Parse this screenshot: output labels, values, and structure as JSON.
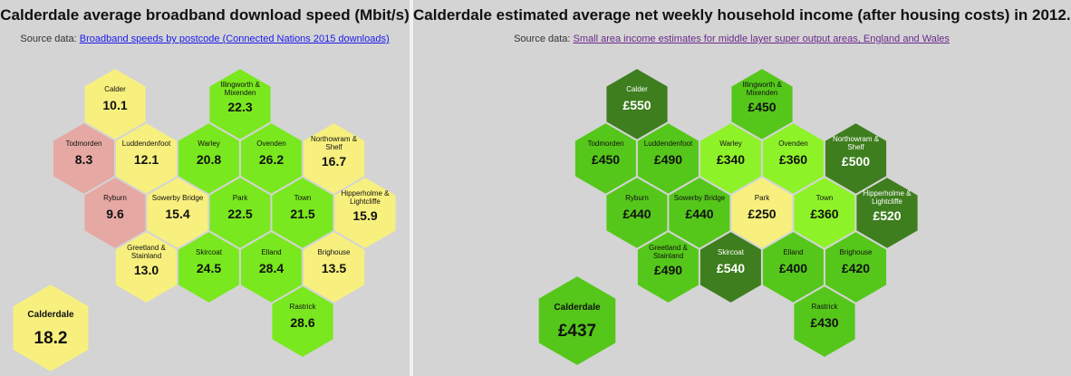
{
  "left": {
    "title": "Calderdale average broadband download speed (Mbit/s)",
    "source_prefix": "Source data:",
    "source_link": "Broadband speeds by postcode (Connected Nations 2015 downloads)",
    "summary": {
      "name": "Calderdale",
      "value": "18.2",
      "color": "#f8f07e"
    },
    "hexes": [
      {
        "name": [
          "Calder"
        ],
        "value": "10.1",
        "color": "#f8f07e"
      },
      {
        "name": [
          "Illingworth &",
          "Mixenden"
        ],
        "value": "22.3",
        "color": "#7ae81e"
      },
      {
        "name": [
          "Todmorden"
        ],
        "value": "8.3",
        "color": "#e6a8a2"
      },
      {
        "name": [
          "Luddendenfoot"
        ],
        "value": "12.1",
        "color": "#f8f07e"
      },
      {
        "name": [
          "Warley"
        ],
        "value": "20.8",
        "color": "#7ae81e"
      },
      {
        "name": [
          "Ovenden"
        ],
        "value": "26.2",
        "color": "#7ae81e"
      },
      {
        "name": [
          "Northowram &",
          "Shelf"
        ],
        "value": "16.7",
        "color": "#f8f07e"
      },
      {
        "name": [
          "Ryburn"
        ],
        "value": "9.6",
        "color": "#e6a8a2"
      },
      {
        "name": [
          "Sowerby Bridge"
        ],
        "value": "15.4",
        "color": "#f8f07e"
      },
      {
        "name": [
          "Park"
        ],
        "value": "22.5",
        "color": "#7ae81e"
      },
      {
        "name": [
          "Town"
        ],
        "value": "21.5",
        "color": "#7ae81e"
      },
      {
        "name": [
          "Hipperholme &",
          "Lightcliffe"
        ],
        "value": "15.9",
        "color": "#f8f07e"
      },
      {
        "name": [
          "Greetland &",
          "Stainland"
        ],
        "value": "13.0",
        "color": "#f8f07e"
      },
      {
        "name": [
          "Skircoat"
        ],
        "value": "24.5",
        "color": "#7ae81e"
      },
      {
        "name": [
          "Elland"
        ],
        "value": "28.4",
        "color": "#7ae81e"
      },
      {
        "name": [
          "Brighouse"
        ],
        "value": "13.5",
        "color": "#f8f07e"
      },
      {
        "name": [
          "Rastrick"
        ],
        "value": "28.6",
        "color": "#7ae81e"
      }
    ]
  },
  "right": {
    "title": "Calderdale estimated average net weekly household income (after housing costs) in 2012.",
    "source_prefix": "Source data:",
    "source_link": "Small area income estimates for middle layer super output areas, England and Wales",
    "summary": {
      "name": "Calderdale",
      "value": "£437",
      "color": "#55c71a"
    },
    "hexes": [
      {
        "name": [
          "Calder"
        ],
        "value": "£550",
        "color": "#3e7e1e",
        "light": true
      },
      {
        "name": [
          "Illingworth &",
          "Mixenden"
        ],
        "value": "£450",
        "color": "#55c71a"
      },
      {
        "name": [
          "Todmorden"
        ],
        "value": "£450",
        "color": "#55c71a"
      },
      {
        "name": [
          "Luddendenfoot"
        ],
        "value": "£490",
        "color": "#55c71a"
      },
      {
        "name": [
          "Warley"
        ],
        "value": "£340",
        "color": "#8ef229"
      },
      {
        "name": [
          "Ovenden"
        ],
        "value": "£360",
        "color": "#8ef229"
      },
      {
        "name": [
          "Northowram &",
          "Shelf"
        ],
        "value": "£500",
        "color": "#3e7e1e",
        "light": true
      },
      {
        "name": [
          "Ryburn"
        ],
        "value": "£440",
        "color": "#55c71a"
      },
      {
        "name": [
          "Sowerby Bridge"
        ],
        "value": "£440",
        "color": "#55c71a"
      },
      {
        "name": [
          "Park"
        ],
        "value": "£250",
        "color": "#f8f07e"
      },
      {
        "name": [
          "Town"
        ],
        "value": "£360",
        "color": "#8ef229"
      },
      {
        "name": [
          "Hipperholme &",
          "Lightcliffe"
        ],
        "value": "£520",
        "color": "#3e7e1e",
        "light": true
      },
      {
        "name": [
          "Greetland &",
          "Stainland"
        ],
        "value": "£490",
        "color": "#55c71a"
      },
      {
        "name": [
          "Skircoat"
        ],
        "value": "£540",
        "color": "#3e7e1e",
        "light": true
      },
      {
        "name": [
          "Elland"
        ],
        "value": "£400",
        "color": "#55c71a"
      },
      {
        "name": [
          "Brighouse"
        ],
        "value": "£420",
        "color": "#55c71a"
      },
      {
        "name": [
          "Rastrick"
        ],
        "value": "£430",
        "color": "#55c71a"
      }
    ]
  }
}
